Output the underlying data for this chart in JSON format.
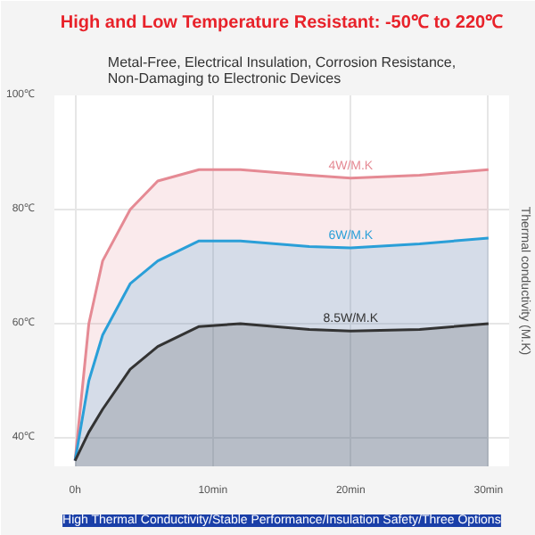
{
  "chart_data": {
    "type": "area",
    "title": "High and Low Temperature Resistant: -50℃ to 220℃",
    "subtitle": "Metal-Free, Electrical Insulation, Corrosion Resistance,\nNon-Damaging to Electronic Devices",
    "y2label": "Thermal conductivity (M.K)",
    "annotations": [
      "High Thermal Conductivity/Stable Performance/Insulation Safety/Three Options"
    ],
    "x": [
      0,
      1,
      2,
      4,
      6,
      9,
      12,
      17,
      20,
      25,
      30
    ],
    "series": [
      {
        "name": "4W/M.K",
        "color": "#e58a94",
        "values": [
          36,
          60,
          71,
          80,
          85,
          87,
          87,
          86,
          85.5,
          86,
          87
        ]
      },
      {
        "name": "6W/M.K",
        "color": "#2a9fd8",
        "values": [
          36,
          50,
          58,
          67,
          71,
          74.5,
          74.5,
          73.5,
          73.3,
          74,
          75
        ]
      },
      {
        "name": "8.5W/M.K",
        "color": "#333333",
        "values": [
          36,
          41,
          45,
          52,
          56,
          59.5,
          60,
          59,
          58.7,
          59,
          60
        ]
      }
    ],
    "xlim": [
      -1.5,
      31.5
    ],
    "ylim": [
      35,
      100
    ],
    "xticks": [
      {
        "value": 0,
        "label": "0h"
      },
      {
        "value": 10,
        "label": "10min"
      },
      {
        "value": 20,
        "label": "20min"
      },
      {
        "value": 30,
        "label": "30min"
      }
    ],
    "yticks": [
      {
        "value": 40,
        "label": "40℃"
      },
      {
        "value": 60,
        "label": "60℃"
      },
      {
        "value": 80,
        "label": "80℃"
      },
      {
        "value": 100,
        "label": "100℃"
      }
    ],
    "grid": true,
    "marker": "none",
    "line_style": "solid"
  }
}
